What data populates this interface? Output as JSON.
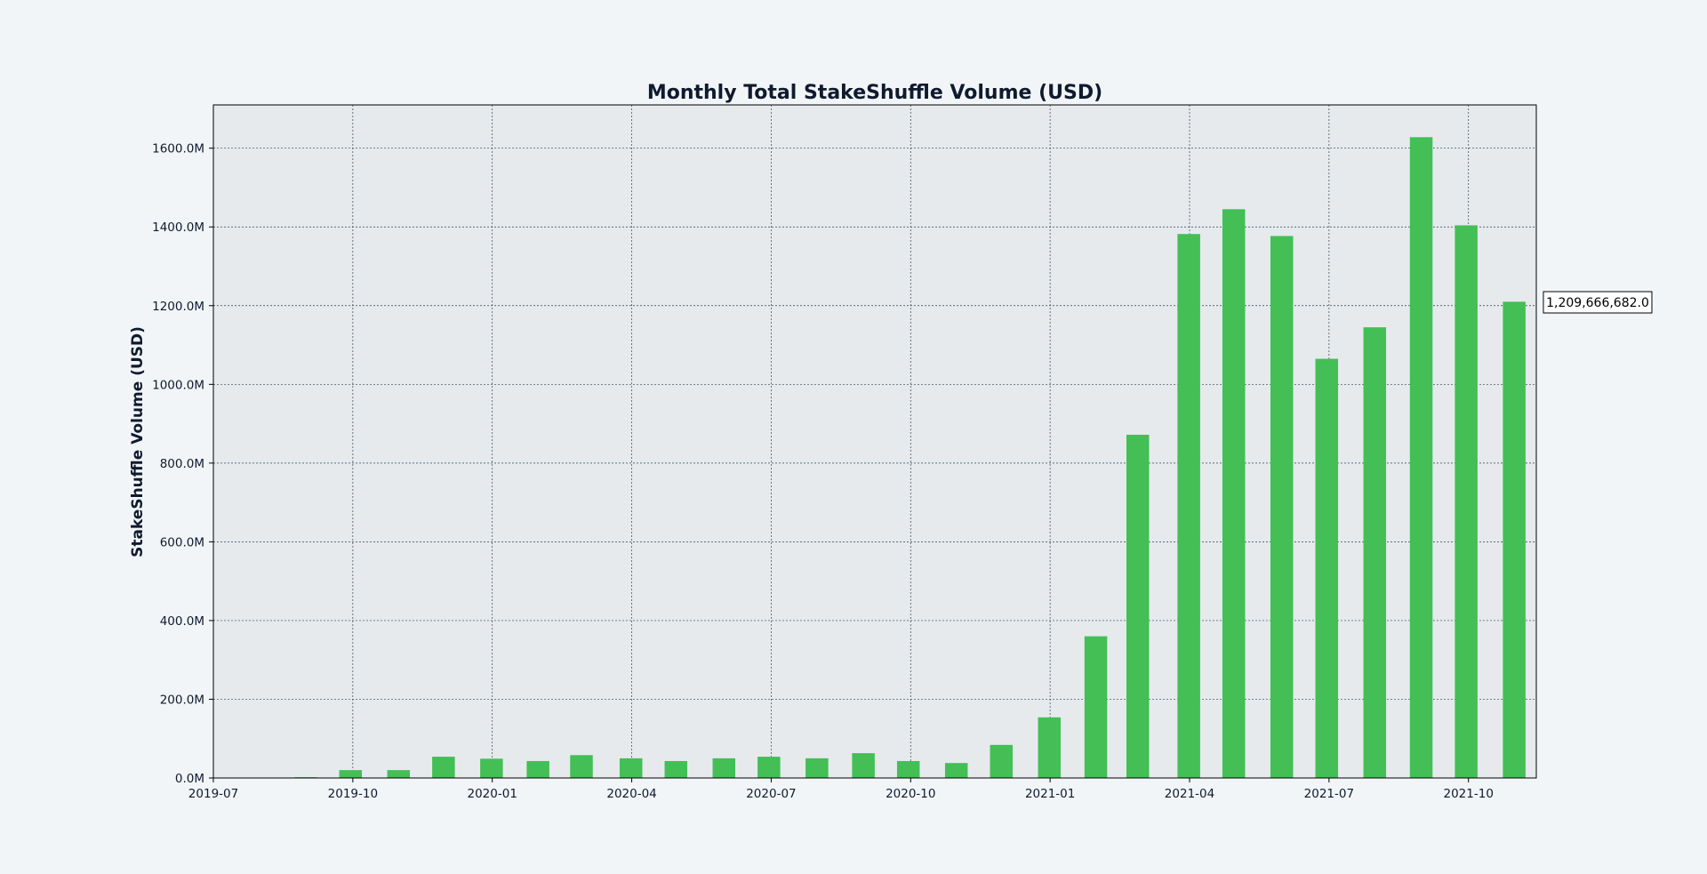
{
  "chart_data": {
    "type": "bar",
    "title": "Monthly Total StakeShuffle Volume (USD)",
    "xlabel": "",
    "ylabel": "StakeShuffle Volume (USD)",
    "ylim": [
      0,
      1710
    ],
    "y_unit_note": "values in millions USD",
    "xlim": [
      "2019-07",
      "2021-11-15"
    ],
    "grid": true,
    "x_ticks": [
      "2019-07",
      "2019-10",
      "2020-01",
      "2020-04",
      "2020-07",
      "2020-10",
      "2021-01",
      "2021-04",
      "2021-07",
      "2021-10"
    ],
    "y_ticks": [
      "0.0M",
      "200.0M",
      "400.0M",
      "600.0M",
      "800.0M",
      "1000.0M",
      "1200.0M",
      "1400.0M",
      "1600.0M"
    ],
    "y_tick_values": [
      0,
      200,
      400,
      600,
      800,
      1000,
      1200,
      1400,
      1600
    ],
    "categories": [
      "2019-08",
      "2019-09",
      "2019-10",
      "2019-11",
      "2019-12",
      "2020-01",
      "2020-02",
      "2020-03",
      "2020-04",
      "2020-05",
      "2020-06",
      "2020-07",
      "2020-08",
      "2020-09",
      "2020-10",
      "2020-11",
      "2020-12",
      "2021-01",
      "2021-02",
      "2021-03",
      "2021-04",
      "2021-05",
      "2021-06",
      "2021-07",
      "2021-08",
      "2021-09",
      "2021-10"
    ],
    "values": [
      2,
      20,
      20,
      54,
      49,
      43,
      58,
      50,
      43,
      50,
      54,
      50,
      63,
      43,
      38,
      84,
      154,
      360,
      872,
      1382,
      1445,
      1377,
      1065,
      1145,
      1628,
      1404,
      1210
    ],
    "annotation": "1,209,666,682.0"
  },
  "colors": {
    "bar": "#43bf55",
    "plot_background": "#e6eaed",
    "page_background": "#f2f5f7",
    "grid": "#33414f",
    "text": "#0f1a2e"
  }
}
